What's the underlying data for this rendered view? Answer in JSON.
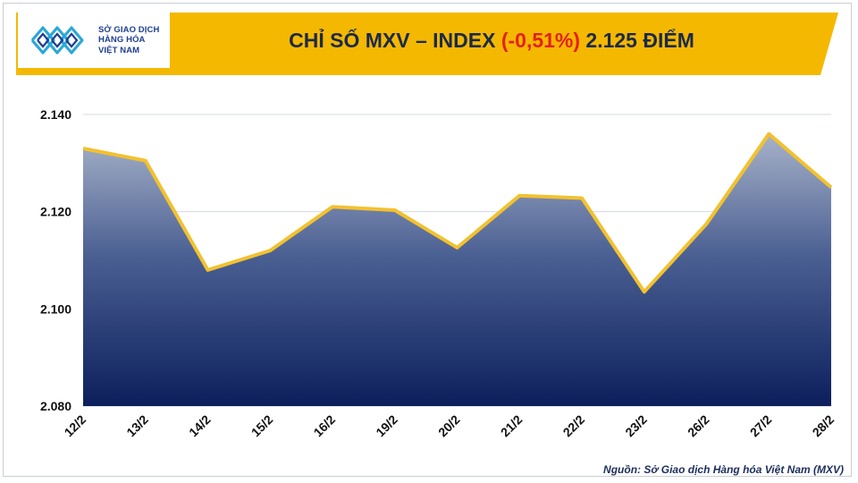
{
  "header": {
    "logo_lines": [
      "SỞ GIAO DỊCH",
      "HÀNG HÓA",
      "VIỆT NAM"
    ],
    "title_prefix": "CHỈ SỐ MXV – INDEX ",
    "title_change": "(-0,51%)",
    "title_suffix": " 2.125 ĐIỂM"
  },
  "footer": {
    "source": "Nguồn: Sở Giao dịch Hàng hóa Việt Nam (MXV)"
  },
  "colors": {
    "banner": "#f5b800",
    "line": "#f2c12e",
    "area_top": "#a7b2c9",
    "area_bottom": "#0c1f5c",
    "negative": "#e3211b"
  },
  "chart_data": {
    "type": "area",
    "categories": [
      "12/2",
      "13/2",
      "14/2",
      "15/2",
      "16/2",
      "19/2",
      "20/2",
      "21/2",
      "22/2",
      "23/2",
      "26/2",
      "27/2",
      "28/2"
    ],
    "values": [
      2133,
      2130.5,
      2108,
      2112,
      2121,
      2120.3,
      2112.6,
      2123.3,
      2122.8,
      2103.5,
      2117.5,
      2136,
      2125
    ],
    "ylim": [
      2080,
      2140
    ],
    "yticks": [
      2080,
      2100,
      2120,
      2140
    ],
    "ytick_labels": [
      "2.080",
      "2.100",
      "2.120",
      "2.140"
    ],
    "grid": true,
    "xlabel": "",
    "ylabel": ""
  }
}
